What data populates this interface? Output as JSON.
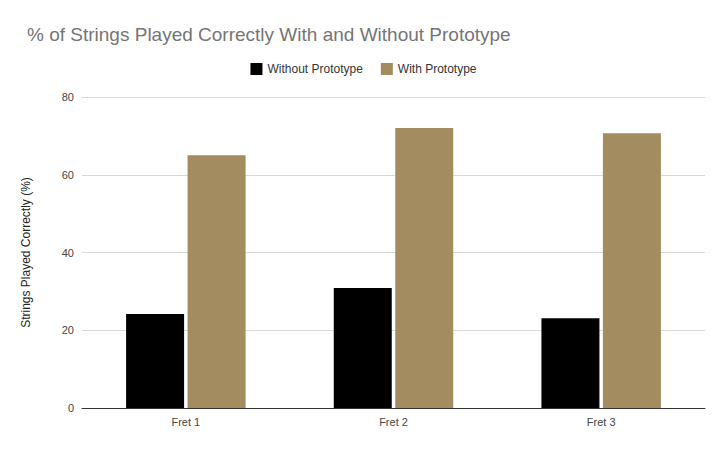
{
  "chart_data": {
    "type": "bar",
    "title": "% of Strings Played Correctly With and Without Prototype",
    "y_label": "Strings Played Correctly (%)",
    "categories": [
      "Fret 1",
      "Fret 2",
      "Fret 3"
    ],
    "series": [
      {
        "name": "Without Prototype",
        "color": "#000000",
        "values": [
          24.2,
          30.9,
          23.1
        ]
      },
      {
        "name": "With Prototype",
        "color": "#a38c5f",
        "values": [
          65.0,
          72.0,
          70.7
        ]
      }
    ],
    "ylim": [
      0,
      80
    ],
    "yticks": [
      0,
      20,
      40,
      60,
      80
    ],
    "grid": true,
    "legend": "top"
  }
}
